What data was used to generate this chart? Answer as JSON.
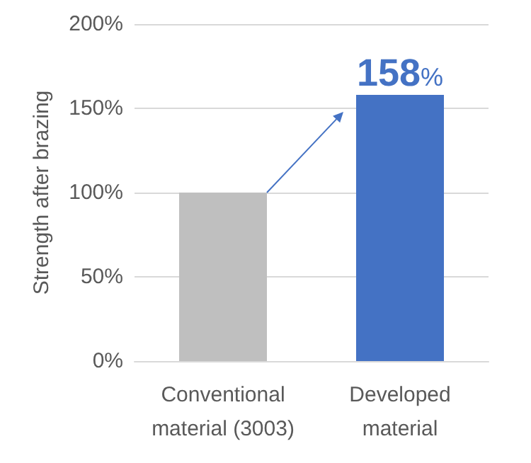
{
  "chart_data": {
    "type": "bar",
    "ylabel": "Strength after brazing",
    "categories": [
      "Conventional\nmaterial (3003)",
      "Developed\nmaterial"
    ],
    "values": [
      100,
      158
    ],
    "colors": [
      "#bfbfbf",
      "#4472c4"
    ],
    "value_labels": [
      null,
      "158%"
    ],
    "ylim": [
      0,
      200
    ],
    "yticks": [
      {
        "value": 0,
        "label": "0%"
      },
      {
        "value": 50,
        "label": "50%"
      },
      {
        "value": 100,
        "label": "100%"
      },
      {
        "value": 150,
        "label": "150%"
      },
      {
        "value": 200,
        "label": "200%"
      }
    ],
    "grid": "y"
  }
}
